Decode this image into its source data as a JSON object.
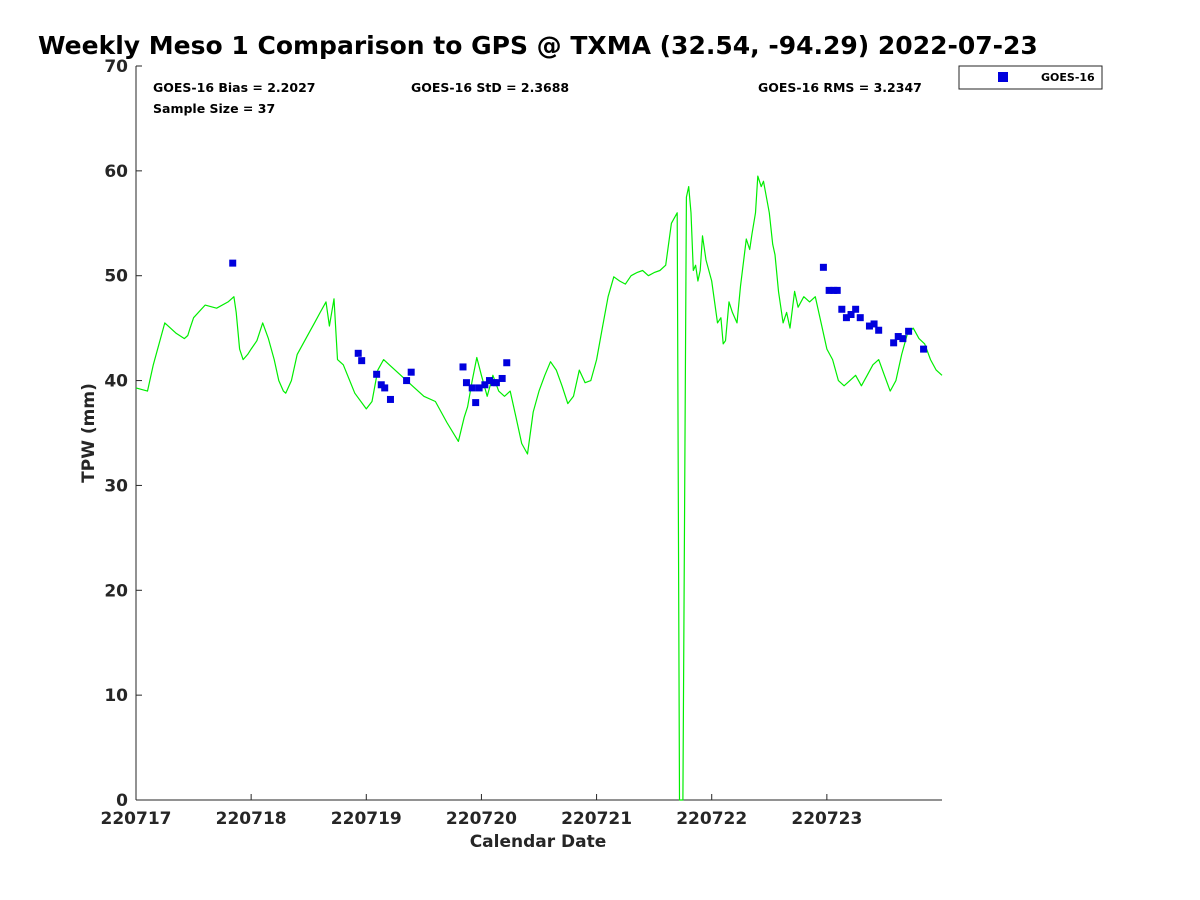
{
  "chart_data": {
    "type": "scatter",
    "title": "Weekly Meso 1 Comparison to GPS @ TXMA (32.54, -94.29) 2022-07-23",
    "xlabel": "Calendar Date",
    "ylabel": "TPW (mm)",
    "xlim": [
      0,
      7.0
    ],
    "ylim": [
      0,
      70
    ],
    "x_ticks": [
      0,
      1,
      2,
      3,
      4,
      5,
      6
    ],
    "x_tick_labels": [
      "220717",
      "220718",
      "220719",
      "220720",
      "220721",
      "220722",
      "220723"
    ],
    "y_ticks": [
      0,
      10,
      20,
      30,
      40,
      50,
      60,
      70
    ],
    "y_tick_labels": [
      "0",
      "10",
      "20",
      "30",
      "40",
      "50",
      "60",
      "70"
    ],
    "grid": false,
    "legend_position": "top-right, outside plot",
    "stats": {
      "bias": "GOES-16 Bias = 2.2027",
      "std": "GOES-16 StD = 2.3688",
      "rms": "GOES-16 RMS = 3.2347",
      "sample": "Sample Size = 37"
    },
    "series": [
      {
        "name": "GOES-16",
        "kind": "scatter",
        "marker": "square",
        "color": "#0000dd",
        "x": [
          0.84,
          1.93,
          1.96,
          2.09,
          2.13,
          2.16,
          2.21,
          2.35,
          2.39,
          2.84,
          2.87,
          2.92,
          2.95,
          2.98,
          3.03,
          3.07,
          3.11,
          3.13,
          3.18,
          3.22,
          5.97,
          6.02,
          6.06,
          6.09,
          6.13,
          6.17,
          6.21,
          6.25,
          6.29,
          6.37,
          6.41,
          6.45,
          6.58,
          6.62,
          6.66,
          6.71,
          6.84
        ],
        "y": [
          51.2,
          42.6,
          41.9,
          40.6,
          39.6,
          39.3,
          38.2,
          40.0,
          40.8,
          41.3,
          39.8,
          39.3,
          37.9,
          39.3,
          39.6,
          40.0,
          39.8,
          39.8,
          40.2,
          41.7,
          50.8,
          48.6,
          48.6,
          48.6,
          46.8,
          46.0,
          46.3,
          46.8,
          46.0,
          45.2,
          45.4,
          44.8,
          43.6,
          44.2,
          44.0,
          44.7,
          43.0
        ]
      },
      {
        "kind": "line",
        "color": "#00ee00",
        "x": [
          0.0,
          0.1,
          0.15,
          0.25,
          0.35,
          0.42,
          0.45,
          0.47,
          0.5,
          0.6,
          0.7,
          0.8,
          0.85,
          0.87,
          0.9,
          0.93,
          0.97,
          1.0,
          1.05,
          1.1,
          1.15,
          1.2,
          1.24,
          1.28,
          1.3,
          1.35,
          1.4,
          1.5,
          1.55,
          1.6,
          1.65,
          1.68,
          1.72,
          1.75,
          1.8,
          1.9,
          2.0,
          2.05,
          2.1,
          2.15,
          2.2,
          2.3,
          2.4,
          2.5,
          2.6,
          2.7,
          2.8,
          2.85,
          2.88,
          2.92,
          2.96,
          3.0,
          3.05,
          3.1,
          3.15,
          3.2,
          3.25,
          3.3,
          3.35,
          3.4,
          3.45,
          3.5,
          3.55,
          3.6,
          3.65,
          3.7,
          3.75,
          3.8,
          3.85,
          3.9,
          3.95,
          4.0,
          4.05,
          4.1,
          4.15,
          4.2,
          4.25,
          4.3,
          4.35,
          4.4,
          4.45,
          4.5,
          4.55,
          4.6,
          4.65,
          4.7,
          4.72,
          4.75,
          4.78,
          4.8,
          4.82,
          4.84,
          4.86,
          4.88,
          4.9,
          4.92,
          4.95,
          5.0,
          5.05,
          5.08,
          5.1,
          5.12,
          5.15,
          5.18,
          5.22,
          5.25,
          5.3,
          5.33,
          5.35,
          5.38,
          5.4,
          5.43,
          5.45,
          5.5,
          5.53,
          5.55,
          5.58,
          5.62,
          5.65,
          5.68,
          5.72,
          5.75,
          5.8,
          5.85,
          5.9,
          5.95,
          6.0,
          6.05,
          6.1,
          6.15,
          6.2,
          6.25,
          6.3,
          6.35,
          6.4,
          6.45,
          6.5,
          6.55,
          6.6,
          6.65,
          6.7,
          6.75,
          6.8,
          6.85,
          6.9,
          6.95,
          7.0
        ],
        "y": [
          39.3,
          39.0,
          41.5,
          45.5,
          44.5,
          44.0,
          44.3,
          45.0,
          46.0,
          47.2,
          46.9,
          47.5,
          48.0,
          46.5,
          43.0,
          42.0,
          42.5,
          43.0,
          43.8,
          45.5,
          44.0,
          42.0,
          40.0,
          39.0,
          38.8,
          40.0,
          42.5,
          44.5,
          45.5,
          46.5,
          47.5,
          45.2,
          47.8,
          42.0,
          41.5,
          38.8,
          37.3,
          38.0,
          41.0,
          42.0,
          41.5,
          40.5,
          39.5,
          38.5,
          38.0,
          36.0,
          34.2,
          36.5,
          37.5,
          40.0,
          42.2,
          40.5,
          38.5,
          40.5,
          39.0,
          38.5,
          39.0,
          36.5,
          34.0,
          33.0,
          37.0,
          39.0,
          40.5,
          41.8,
          41.0,
          39.5,
          37.8,
          38.5,
          41.0,
          39.8,
          40.0,
          42.0,
          45.0,
          48.0,
          49.9,
          49.5,
          49.2,
          50.0,
          50.3,
          50.5,
          50.0,
          50.3,
          50.5,
          51.0,
          55.0,
          56.0,
          0.0,
          0.0,
          57.5,
          58.5,
          56.0,
          50.5,
          51.0,
          49.5,
          50.5,
          53.8,
          51.5,
          49.5,
          45.5,
          46.0,
          43.5,
          43.8,
          47.5,
          46.5,
          45.5,
          49.0,
          53.5,
          52.5,
          54.0,
          56.0,
          59.5,
          58.5,
          59.0,
          56.0,
          53.0,
          52.0,
          48.5,
          45.5,
          46.5,
          45.0,
          48.5,
          47.0,
          48.0,
          47.5,
          48.0,
          45.5,
          43.0,
          42.0,
          40.0,
          39.5,
          40.0,
          40.5,
          39.5,
          40.5,
          41.5,
          42.0,
          40.5,
          39.0,
          40.0,
          42.5,
          44.5,
          45.0,
          44.0,
          43.5,
          42.0,
          41.0,
          40.5
        ]
      }
    ]
  }
}
